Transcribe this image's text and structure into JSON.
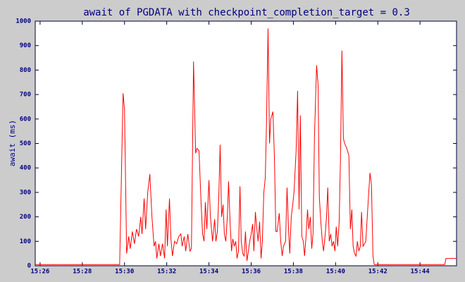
{
  "chart_data": {
    "type": "line",
    "title": "await of PGDATA with checkpoint_completion_target = 0.3",
    "y_label": "await (ms)",
    "x": [
      25.77,
      29.77,
      29.93,
      30.0,
      30.1,
      30.2,
      30.27,
      30.37,
      30.47,
      30.57,
      30.67,
      30.77,
      30.83,
      30.93,
      31.0,
      31.1,
      31.2,
      31.3,
      31.4,
      31.47,
      31.53,
      31.63,
      31.7,
      31.8,
      31.9,
      31.97,
      32.03,
      32.13,
      32.2,
      32.27,
      32.37,
      32.47,
      32.57,
      32.67,
      32.73,
      32.83,
      32.9,
      33.0,
      33.1,
      33.17,
      33.27,
      33.37,
      33.43,
      33.53,
      33.63,
      33.7,
      33.77,
      33.83,
      33.9,
      34.0,
      34.07,
      34.17,
      34.27,
      34.33,
      34.4,
      34.47,
      34.53,
      34.6,
      34.67,
      34.73,
      34.8,
      34.87,
      34.93,
      35.0,
      35.07,
      35.13,
      35.2,
      35.27,
      35.33,
      35.4,
      35.47,
      35.53,
      35.6,
      35.67,
      35.73,
      35.8,
      35.87,
      35.93,
      36.0,
      36.07,
      36.13,
      36.2,
      36.27,
      36.33,
      36.4,
      36.47,
      36.53,
      36.6,
      36.67,
      36.73,
      36.8,
      36.87,
      36.93,
      37.03,
      37.1,
      37.17,
      37.23,
      37.33,
      37.4,
      37.47,
      37.53,
      37.63,
      37.7,
      37.77,
      37.83,
      37.9,
      37.97,
      38.03,
      38.13,
      38.2,
      38.27,
      38.33,
      38.4,
      38.47,
      38.53,
      38.6,
      38.67,
      38.73,
      38.8,
      38.87,
      38.93,
      39.0,
      39.1,
      39.17,
      39.23,
      39.3,
      39.37,
      39.43,
      39.5,
      39.57,
      39.63,
      39.7,
      39.77,
      39.83,
      39.9,
      39.97,
      40.03,
      40.1,
      40.17,
      40.23,
      40.3,
      40.37,
      40.43,
      40.53,
      40.63,
      40.7,
      40.77,
      40.83,
      40.9,
      40.97,
      41.03,
      41.1,
      41.17,
      41.23,
      41.3,
      41.37,
      41.43,
      41.5,
      41.57,
      41.63,
      41.7,
      41.77,
      41.83,
      45.17,
      45.23,
      45.73
    ],
    "series": [
      {
        "color": "#ff0000",
        "values": [
          5,
          5,
          705,
          640,
          50,
          120,
          70,
          140,
          90,
          150,
          120,
          200,
          130,
          275,
          150,
          300,
          375,
          200,
          80,
          100,
          30,
          90,
          40,
          90,
          30,
          230,
          80,
          275,
          110,
          40,
          100,
          90,
          120,
          130,
          80,
          120,
          60,
          130,
          60,
          70,
          835,
          460,
          480,
          470,
          250,
          130,
          100,
          260,
          150,
          350,
          200,
          100,
          190,
          100,
          140,
          290,
          495,
          200,
          250,
          130,
          100,
          200,
          345,
          180,
          60,
          110,
          80,
          100,
          30,
          60,
          325,
          100,
          50,
          40,
          140,
          20,
          60,
          100,
          130,
          170,
          60,
          220,
          150,
          100,
          180,
          30,
          100,
          300,
          360,
          600,
          970,
          500,
          600,
          630,
          450,
          140,
          140,
          215,
          100,
          40,
          80,
          100,
          320,
          150,
          50,
          200,
          250,
          300,
          470,
          715,
          230,
          615,
          120,
          100,
          40,
          120,
          230,
          150,
          200,
          70,
          130,
          530,
          820,
          740,
          280,
          180,
          100,
          60,
          120,
          200,
          320,
          100,
          130,
          80,
          100,
          60,
          160,
          80,
          180,
          430,
          880,
          520,
          500,
          480,
          450,
          150,
          230,
          80,
          50,
          40,
          100,
          60,
          80,
          220,
          80,
          90,
          100,
          200,
          300,
          380,
          330,
          40,
          5,
          5,
          30,
          30
        ]
      }
    ],
    "xlim": [
      25.77,
      45.73
    ],
    "xticks": [
      {
        "value": 26,
        "label": "15:26"
      },
      {
        "value": 28,
        "label": "15:28"
      },
      {
        "value": 30,
        "label": "15:30"
      },
      {
        "value": 32,
        "label": "15:32"
      },
      {
        "value": 34,
        "label": "15:34"
      },
      {
        "value": 36,
        "label": "15:36"
      },
      {
        "value": 38,
        "label": "15:38"
      },
      {
        "value": 40,
        "label": "15:40"
      },
      {
        "value": 42,
        "label": "15:42"
      },
      {
        "value": 44,
        "label": "15:44"
      }
    ],
    "ylim": [
      0,
      1000
    ],
    "yticks": [
      0,
      100,
      200,
      300,
      400,
      500,
      600,
      700,
      800,
      900,
      1000
    ]
  }
}
